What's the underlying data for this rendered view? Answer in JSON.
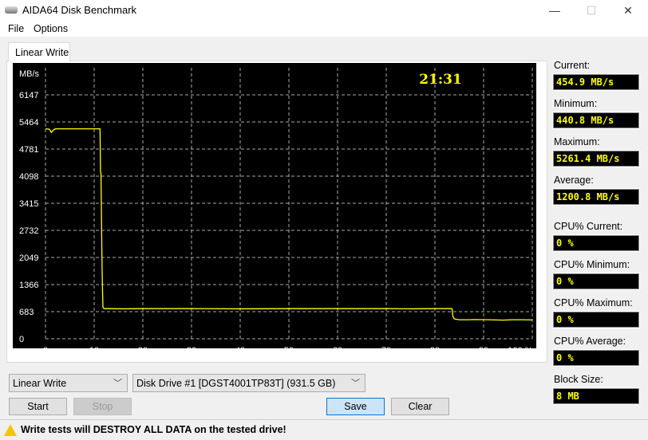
{
  "window": {
    "title": "AIDA64 Disk Benchmark",
    "minimize": "—",
    "maximize": "☐",
    "close": "✕"
  },
  "menu": [
    "File",
    "Options"
  ],
  "tab": "Linear Write",
  "chart_data": {
    "type": "line",
    "ylabel": "MB/s",
    "timer": "21:31",
    "yticks": [
      0,
      683,
      1366,
      2049,
      2732,
      3415,
      4098,
      4781,
      5464,
      6147
    ],
    "xticks": [
      "0",
      "10",
      "20",
      "30",
      "40",
      "50",
      "60",
      "70",
      "80",
      "90",
      "100 %"
    ],
    "xlim": [
      0,
      100
    ],
    "ylim": [
      0,
      6830
    ],
    "grid": true,
    "line_color": "#ffff00",
    "series": [
      {
        "x": [
          0,
          0.8,
          1.2,
          1.6,
          2,
          5,
          11.2,
          11.3,
          11.4,
          11.6,
          11.7,
          11.8,
          12,
          13,
          16,
          20,
          30,
          40,
          50,
          60,
          70,
          75,
          80,
          82,
          83.5,
          83.7,
          84,
          85,
          87,
          88,
          91,
          94,
          96,
          98,
          100
        ],
        "y": [
          5290,
          5280,
          5200,
          5260,
          5290,
          5290,
          5290,
          4200,
          4180,
          2000,
          1300,
          800,
          760,
          760,
          755,
          760,
          760,
          755,
          760,
          760,
          760,
          755,
          760,
          760,
          760,
          560,
          500,
          480,
          480,
          485,
          480,
          470,
          480,
          480,
          475
        ]
      }
    ]
  },
  "stats": [
    {
      "label": "Current:",
      "value": "454.9 MB/s"
    },
    {
      "label": "Minimum:",
      "value": "440.8 MB/s"
    },
    {
      "label": "Maximum:",
      "value": "5261.4 MB/s"
    },
    {
      "label": "Average:",
      "value": "1200.8 MB/s"
    },
    {
      "label": "CPU% Current:",
      "value": "0 %"
    },
    {
      "label": "CPU% Minimum:",
      "value": "0 %"
    },
    {
      "label": "CPU% Maximum:",
      "value": "0 %"
    },
    {
      "label": "CPU% Average:",
      "value": "0 %"
    },
    {
      "label": "Block Size:",
      "value": "8 MB"
    }
  ],
  "controls": {
    "test_select": "Linear Write",
    "drive_select": "Disk Drive #1  [DGST4001TP83T]  (931.5 GB)",
    "start": "Start",
    "stop": "Stop",
    "save": "Save",
    "clear": "Clear"
  },
  "status": "Write tests will DESTROY ALL DATA on the tested drive!"
}
